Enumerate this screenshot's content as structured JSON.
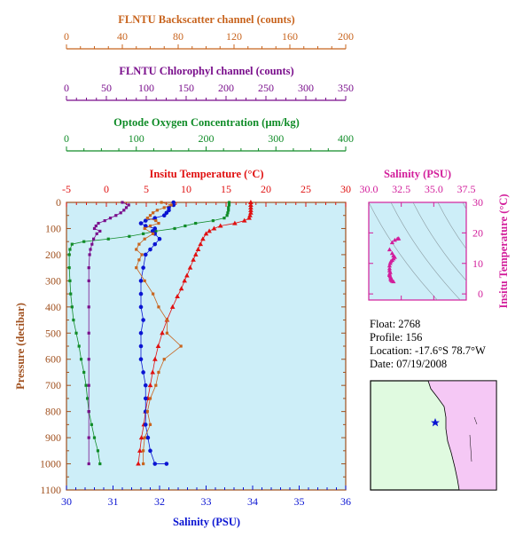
{
  "colors": {
    "backscatter": "#c8641e",
    "chlorophyll": "#7a0f8c",
    "oxygen": "#108c28",
    "temperature": "#e01010",
    "salinity": "#0a14d2",
    "pressure": "#a0501e",
    "salinity_inset": "#d21e9b",
    "plot_bg": "#cdeef8",
    "land": "#f5c8f5",
    "ocean": "#e0fae0"
  },
  "info": {
    "float": "Float:  2768",
    "profile": "Profile:  156",
    "location": "Location:  -17.6°S  78.7°W",
    "date": "Date:  07/19/2008"
  },
  "chart_data": [
    {
      "type": "line",
      "name": "main-profile",
      "ylabel": "Pressure (decibar)",
      "y_ticks": [
        "0",
        "100",
        "200",
        "300",
        "400",
        "500",
        "600",
        "700",
        "800",
        "900",
        "1000",
        "1100"
      ],
      "ylim": [
        1100,
        0
      ],
      "axes": {
        "backscatter": {
          "label": "FLNTU Backscatter channel (counts)",
          "range": [
            0,
            200
          ],
          "ticks": [
            "0",
            "40",
            "80",
            "120",
            "160",
            "200"
          ]
        },
        "chlorophyll": {
          "label": "FLNTU Chlorophyl channel (counts)",
          "range": [
            0,
            350
          ],
          "ticks": [
            "0",
            "50",
            "100",
            "150",
            "200",
            "250",
            "300",
            "350"
          ]
        },
        "oxygen": {
          "label": "Optode Oxygen Concentration (µm/kg)",
          "range": [
            0,
            400
          ],
          "ticks": [
            "0",
            "100",
            "200",
            "300",
            "400"
          ]
        },
        "temperature": {
          "label": "Insitu Temperature (°C)",
          "range": [
            -5,
            30
          ],
          "ticks": [
            "-5",
            "0",
            "5",
            "10",
            "15",
            "20",
            "25",
            "30"
          ]
        },
        "salinity": {
          "label": "Salinity (PSU)",
          "range": [
            30,
            36
          ],
          "ticks": [
            "30",
            "31",
            "32",
            "33",
            "34",
            "35",
            "36"
          ]
        }
      },
      "series": [
        {
          "key": "temperature",
          "marker": "triangle",
          "points": [
            [
              0,
              18.1
            ],
            [
              10,
              18.1
            ],
            [
              20,
              18.1
            ],
            [
              30,
              18.1
            ],
            [
              40,
              18.1
            ],
            [
              50,
              18.0
            ],
            [
              60,
              17.9
            ],
            [
              70,
              17.3
            ],
            [
              80,
              16.1
            ],
            [
              90,
              14.3
            ],
            [
              100,
              13.5
            ],
            [
              110,
              12.9
            ],
            [
              120,
              12.5
            ],
            [
              140,
              12.1
            ],
            [
              160,
              11.8
            ],
            [
              180,
              11.5
            ],
            [
              200,
              11.2
            ],
            [
              220,
              10.9
            ],
            [
              250,
              10.5
            ],
            [
              280,
              10.1
            ],
            [
              300,
              9.8
            ],
            [
              330,
              9.4
            ],
            [
              360,
              8.9
            ],
            [
              400,
              8.3
            ],
            [
              450,
              7.6
            ],
            [
              500,
              7.0
            ],
            [
              550,
              6.5
            ],
            [
              600,
              6.1
            ],
            [
              650,
              5.8
            ],
            [
              700,
              5.5
            ],
            [
              750,
              5.2
            ],
            [
              800,
              4.9
            ],
            [
              850,
              4.7
            ],
            [
              900,
              4.4
            ],
            [
              950,
              4.2
            ],
            [
              1000,
              4.0
            ]
          ]
        },
        {
          "key": "oxygen",
          "marker": "square",
          "points": [
            [
              0,
              233
            ],
            [
              10,
              233
            ],
            [
              20,
              232
            ],
            [
              30,
              232
            ],
            [
              40,
              231
            ],
            [
              50,
              230
            ],
            [
              60,
              226
            ],
            [
              70,
              210
            ],
            [
              80,
              185
            ],
            [
              90,
              170
            ],
            [
              100,
              155
            ],
            [
              110,
              128
            ],
            [
              120,
              110
            ],
            [
              130,
              90
            ],
            [
              140,
              60
            ],
            [
              150,
              25
            ],
            [
              160,
              8
            ],
            [
              180,
              5
            ],
            [
              200,
              4
            ],
            [
              250,
              4
            ],
            [
              300,
              5
            ],
            [
              350,
              6
            ],
            [
              400,
              8
            ],
            [
              450,
              10
            ],
            [
              500,
              14
            ],
            [
              550,
              18
            ],
            [
              600,
              21
            ],
            [
              650,
              25
            ],
            [
              700,
              28
            ],
            [
              750,
              30
            ],
            [
              800,
              32
            ],
            [
              850,
              36
            ],
            [
              900,
              40
            ],
            [
              950,
              45
            ],
            [
              1000,
              48
            ]
          ]
        },
        {
          "key": "salinity",
          "marker": "dot",
          "points": [
            [
              0,
              32.3
            ],
            [
              10,
              32.3
            ],
            [
              20,
              32.2
            ],
            [
              30,
              32.2
            ],
            [
              40,
              32.15
            ],
            [
              50,
              32.1
            ],
            [
              60,
              31.9
            ],
            [
              70,
              31.7
            ],
            [
              80,
              31.6
            ],
            [
              90,
              31.7
            ],
            [
              100,
              31.9
            ],
            [
              110,
              31.85
            ],
            [
              120,
              31.9
            ],
            [
              140,
              32.0
            ],
            [
              160,
              31.9
            ],
            [
              180,
              31.8
            ],
            [
              200,
              31.7
            ],
            [
              250,
              31.65
            ],
            [
              300,
              31.6
            ],
            [
              350,
              31.6
            ],
            [
              400,
              31.6
            ],
            [
              450,
              31.65
            ],
            [
              500,
              31.6
            ],
            [
              550,
              31.6
            ],
            [
              600,
              31.6
            ],
            [
              650,
              31.65
            ],
            [
              700,
              31.7
            ],
            [
              750,
              31.7
            ],
            [
              800,
              31.7
            ],
            [
              850,
              31.7
            ],
            [
              900,
              31.75
            ],
            [
              950,
              31.8
            ],
            [
              1000,
              31.9
            ],
            [
              1000,
              32.15
            ]
          ]
        },
        {
          "key": "backscatter",
          "marker": "square",
          "points": [
            [
              0,
              68
            ],
            [
              10,
              75
            ],
            [
              20,
              70
            ],
            [
              30,
              65
            ],
            [
              40,
              62
            ],
            [
              50,
              60
            ],
            [
              60,
              58
            ],
            [
              70,
              64
            ],
            [
              80,
              66
            ],
            [
              90,
              60
            ],
            [
              100,
              56
            ],
            [
              120,
              62
            ],
            [
              140,
              56
            ],
            [
              160,
              52
            ],
            [
              180,
              50
            ],
            [
              200,
              54
            ],
            [
              220,
              52
            ],
            [
              250,
              50
            ],
            [
              300,
              56
            ],
            [
              350,
              62
            ],
            [
              400,
              66
            ],
            [
              450,
              72
            ],
            [
              500,
              72
            ],
            [
              550,
              82
            ],
            [
              600,
              70
            ],
            [
              650,
              66
            ],
            [
              700,
              64
            ],
            [
              750,
              60
            ],
            [
              800,
              58
            ],
            [
              850,
              60
            ],
            [
              900,
              56
            ],
            [
              950,
              55
            ],
            [
              1000,
              55
            ]
          ]
        },
        {
          "key": "chlorophyll",
          "marker": "square",
          "points": [
            [
              0,
              70
            ],
            [
              10,
              78
            ],
            [
              20,
              75
            ],
            [
              30,
              72
            ],
            [
              40,
              68
            ],
            [
              50,
              62
            ],
            [
              60,
              55
            ],
            [
              70,
              48
            ],
            [
              80,
              40
            ],
            [
              90,
              37
            ],
            [
              100,
              35
            ],
            [
              110,
              42
            ],
            [
              120,
              38
            ],
            [
              140,
              34
            ],
            [
              160,
              32
            ],
            [
              180,
              30
            ],
            [
              200,
              29
            ],
            [
              250,
              28
            ],
            [
              300,
              28
            ],
            [
              400,
              28
            ],
            [
              500,
              28
            ],
            [
              600,
              28
            ],
            [
              700,
              28
            ],
            [
              800,
              28
            ],
            [
              900,
              28
            ],
            [
              1000,
              28
            ]
          ]
        }
      ]
    },
    {
      "type": "scatter",
      "name": "ts-inset",
      "xlabel": "Salinity (PSU)",
      "ylabel": "Insitu Temperature (°C)",
      "x_ticks": [
        "30.0",
        "32.5",
        "35.0",
        "37.5"
      ],
      "y_ticks": [
        "30",
        "20",
        "10",
        "0"
      ],
      "xlim": [
        30,
        37.5
      ],
      "ylim": [
        -2,
        30
      ],
      "points": [
        [
          32.3,
          18.1
        ],
        [
          32.2,
          18.0
        ],
        [
          32.0,
          17.6
        ],
        [
          31.8,
          16.8
        ],
        [
          31.6,
          14.5
        ],
        [
          31.8,
          13.3
        ],
        [
          31.9,
          12.5
        ],
        [
          32.0,
          12.0
        ],
        [
          31.9,
          11.5
        ],
        [
          31.8,
          11.0
        ],
        [
          31.7,
          10.6
        ],
        [
          31.65,
          10.0
        ],
        [
          31.6,
          9.2
        ],
        [
          31.6,
          8.3
        ],
        [
          31.6,
          7.6
        ],
        [
          31.65,
          7.0
        ],
        [
          31.6,
          6.5
        ],
        [
          31.6,
          6.1
        ],
        [
          31.65,
          5.7
        ],
        [
          31.7,
          5.3
        ],
        [
          31.7,
          5.0
        ],
        [
          31.7,
          4.7
        ],
        [
          31.75,
          4.4
        ],
        [
          31.8,
          4.2
        ],
        [
          31.9,
          4.0
        ]
      ]
    }
  ]
}
